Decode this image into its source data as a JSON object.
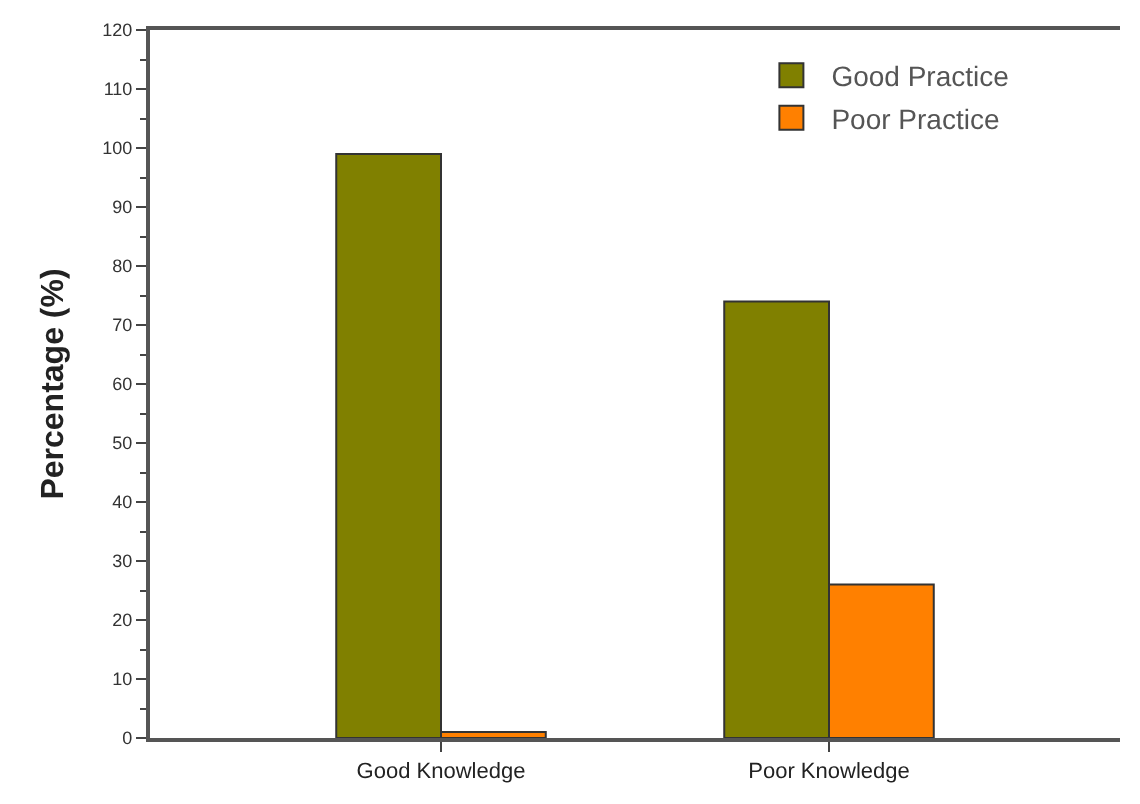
{
  "chart_data": {
    "type": "bar",
    "ylabel": "Percentage (%)",
    "categories": [
      "Good Knowledge",
      "Poor Knowledge"
    ],
    "series": [
      {
        "name": "Good Practice",
        "color": "#808000",
        "values": [
          99,
          74
        ]
      },
      {
        "name": "Poor Practice",
        "color": "#ff8000",
        "values": [
          1,
          26
        ]
      }
    ],
    "ylim": [
      0,
      120
    ],
    "yticks": [
      0,
      10,
      20,
      30,
      40,
      50,
      60,
      70,
      80,
      90,
      100,
      110,
      120
    ],
    "legend": "top right"
  }
}
